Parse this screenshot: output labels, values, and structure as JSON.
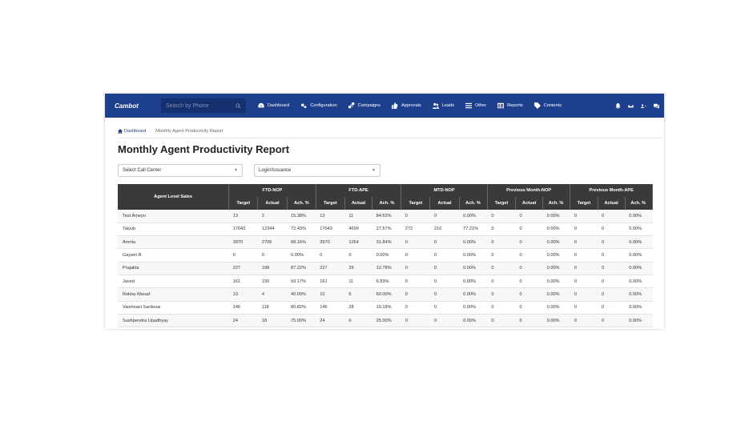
{
  "colors": {
    "nav_bg": "#1e3f8c",
    "search_bg": "#15306e",
    "table_header_bg": "#3a3a3a",
    "accent": "#23407a"
  },
  "nav": {
    "logo": "Cambot",
    "search_placeholder": "Search by Phone",
    "items": [
      {
        "label": "Dashboard",
        "icon": "dashboard-icon"
      },
      {
        "label": "Configuration",
        "icon": "cogs-icon"
      },
      {
        "label": "Campaigns",
        "icon": "campaigns-icon"
      },
      {
        "label": "Approvals",
        "icon": "thumbs-up-icon"
      },
      {
        "label": "Leads",
        "icon": "users-icon"
      },
      {
        "label": "Other",
        "icon": "list-icon"
      },
      {
        "label": "Reports",
        "icon": "table-icon"
      },
      {
        "label": "Contents",
        "icon": "tags-icon"
      }
    ]
  },
  "breadcrumb": {
    "home": "Dashboard",
    "current": "Monthly Agent Productivity Report"
  },
  "page": {
    "title": "Monthly Agent Productivity Report"
  },
  "filters": {
    "call_center": "Select Call Center",
    "login_type": "Login/Issuance"
  },
  "table": {
    "first_header": "Agent Level Sales",
    "groups": [
      "FTD-NOP",
      "FTD-APE",
      "MTD-NOP",
      "Previous Month-NOP",
      "Previous Month-APE"
    ],
    "sub_headers": [
      "Target",
      "Actual",
      "Ach. %"
    ],
    "rows": [
      {
        "name": "Test Ameyo",
        "cells": [
          "13",
          "2",
          "15.38%",
          "13",
          "11",
          "84.62%",
          "0",
          "0",
          "0.00%",
          "0",
          "0",
          "0.00%",
          "0",
          "0",
          "0.00%"
        ]
      },
      {
        "name": "Taiyub",
        "cells": [
          "17043",
          "12344",
          "72.43%",
          "17043",
          "4699",
          "27.57%",
          "272",
          "210",
          "77.21%",
          "0",
          "0",
          "0.00%",
          "0",
          "0",
          "0.00%"
        ]
      },
      {
        "name": "Amrita",
        "cells": [
          "3970",
          "2706",
          "68.16%",
          "3970",
          "1264",
          "31.84%",
          "0",
          "0",
          "0.00%",
          "0",
          "0",
          "0.00%",
          "0",
          "0",
          "0.00%"
        ]
      },
      {
        "name": "Gayatri.R",
        "cells": [
          "0",
          "0",
          "0.00%",
          "0",
          "0",
          "0.00%",
          "0",
          "0",
          "0.00%",
          "0",
          "0",
          "0.00%",
          "0",
          "0",
          "0.00%"
        ]
      },
      {
        "name": "Prajakta",
        "cells": [
          "227",
          "198",
          "87.22%",
          "227",
          "29",
          "12.78%",
          "0",
          "0",
          "0.00%",
          "0",
          "0",
          "0.00%",
          "0",
          "0",
          "0.00%"
        ]
      },
      {
        "name": "Javed",
        "cells": [
          "161",
          "150",
          "93.17%",
          "161",
          "11",
          "6.83%",
          "0",
          "0",
          "0.00%",
          "0",
          "0",
          "0.00%",
          "0",
          "0",
          "0.00%"
        ]
      },
      {
        "name": "Rekha Warad",
        "cells": [
          "10",
          "4",
          "40.00%",
          "10",
          "6",
          "60.00%",
          "0",
          "0",
          "0.00%",
          "0",
          "0",
          "0.00%",
          "0",
          "0",
          "0.00%"
        ]
      },
      {
        "name": "Vaishnavi Sardesai",
        "cells": [
          "146",
          "118",
          "80.82%",
          "146",
          "28",
          "19.18%",
          "0",
          "0",
          "0.00%",
          "0",
          "0",
          "0.00%",
          "0",
          "0",
          "0.00%"
        ]
      },
      {
        "name": "Sushpendra Upadhyay",
        "cells": [
          "24",
          "18",
          "75.00%",
          "24",
          "6",
          "25.00%",
          "0",
          "0",
          "0.00%",
          "0",
          "0",
          "0.00%",
          "0",
          "0",
          "0.00%"
        ]
      }
    ]
  }
}
